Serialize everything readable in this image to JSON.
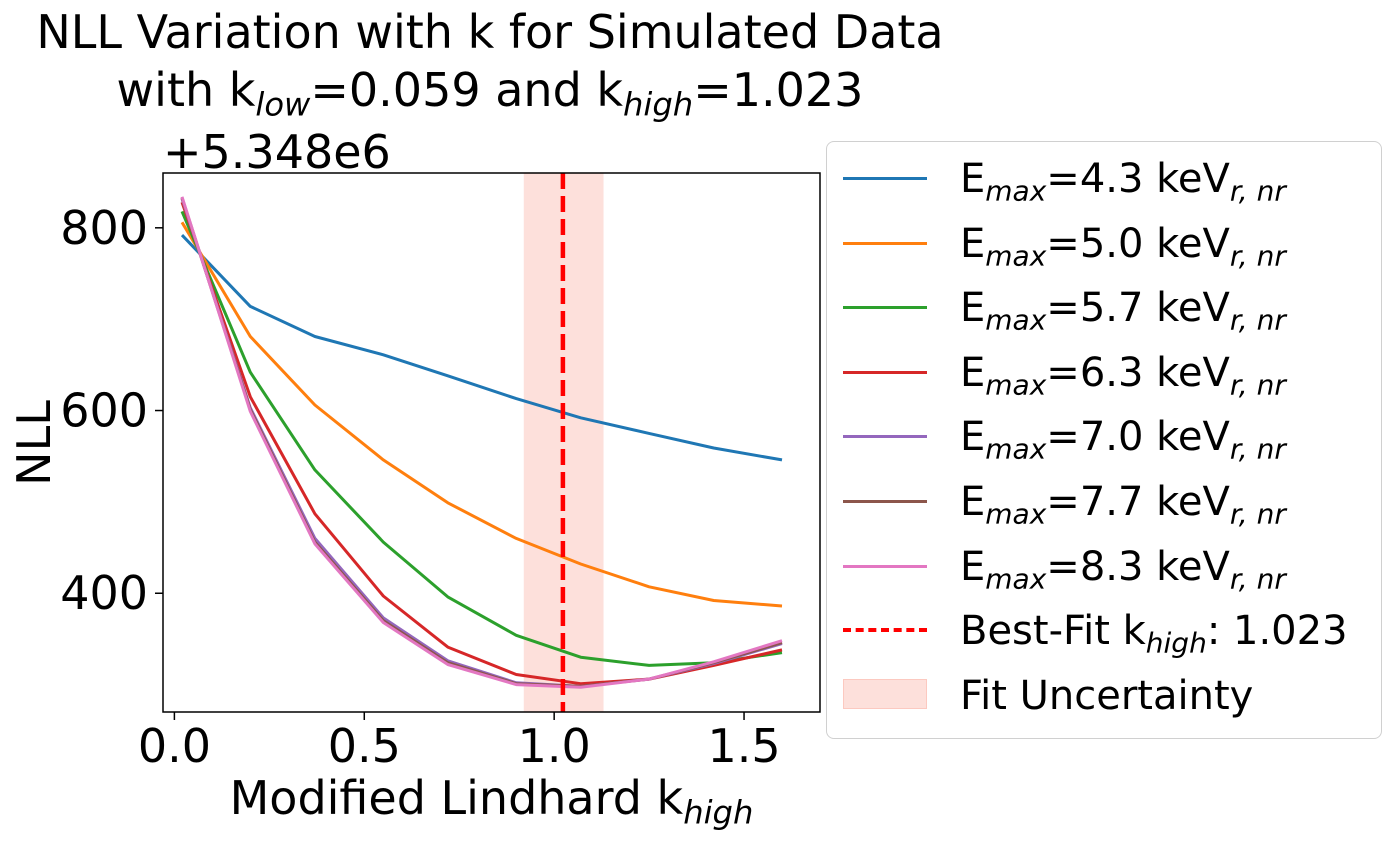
{
  "title_line1": "NLL Variation with k for Simulated Data",
  "title_line2": {
    "pre": "with k",
    "sub1": "low",
    "mid": "=0.059 and k",
    "sub2": "high",
    "post": "=1.023"
  },
  "offset_text": "+5.348e6",
  "chart_data": {
    "type": "line",
    "title": "NLL Variation with k for Simulated Data with k_low=0.059 and k_high=1.023",
    "xlabel": "Modified Lindhard k_high",
    "ylabel": "NLL",
    "y_offset": 5348000,
    "xlim": [
      -0.03,
      1.7
    ],
    "ylim": [
      270,
      860
    ],
    "xticks": [
      0.0,
      0.5,
      1.0,
      1.5
    ],
    "xtick_labels": [
      "0.0",
      "0.5",
      "1.0",
      "1.5"
    ],
    "yticks": [
      400,
      600,
      800
    ],
    "ytick_labels": [
      "400",
      "600",
      "800"
    ],
    "x": [
      0.02,
      0.2,
      0.37,
      0.55,
      0.72,
      0.9,
      1.07,
      1.25,
      1.42,
      1.6
    ],
    "series": [
      {
        "name": "E_max=4.3 keV_r,nr",
        "color": "#1f77b4",
        "values": [
          792,
          714,
          681,
          661,
          638,
          613,
          592,
          575,
          559,
          546
        ]
      },
      {
        "name": "E_max=5.0 keV_r,nr",
        "color": "#ff7f0e",
        "values": [
          806,
          681,
          606,
          546,
          499,
          460,
          432,
          407,
          392,
          386
        ]
      },
      {
        "name": "E_max=5.7 keV_r,nr",
        "color": "#2ca02c",
        "values": [
          818,
          642,
          535,
          456,
          396,
          354,
          330,
          321,
          324,
          335
        ]
      },
      {
        "name": "E_max=6.3 keV_r,nr",
        "color": "#d62728",
        "values": [
          828,
          615,
          487,
          397,
          341,
          311,
          301,
          306,
          321,
          338
        ]
      },
      {
        "name": "E_max=7.0 keV_r,nr",
        "color": "#9467bd",
        "values": [
          832,
          603,
          460,
          373,
          326,
          302,
          298,
          306,
          323,
          345
        ]
      },
      {
        "name": "E_max=7.7 keV_r,nr",
        "color": "#8c564b",
        "values": [
          833,
          601,
          456,
          370,
          324,
          301,
          298,
          306,
          324,
          346
        ]
      },
      {
        "name": "E_max=8.3 keV_r,nr",
        "color": "#e377c2",
        "values": [
          834,
          599,
          454,
          368,
          322,
          300,
          297,
          306,
          325,
          348
        ]
      }
    ],
    "best_fit": {
      "name": "Best-Fit k_high: 1.023",
      "x": 1.023,
      "color": "#ff0000"
    },
    "uncertainty": {
      "name": "Fit Uncertainty",
      "x_range": [
        0.92,
        1.13
      ],
      "color": "#fde0db"
    },
    "legend_position": "outside right"
  },
  "legend": [
    {
      "pre": "E",
      "sub1": "max",
      "mid": "=4.3 keV",
      "sub2": "r, nr",
      "post": "",
      "color": "#1f77b4",
      "style": "solid"
    },
    {
      "pre": "E",
      "sub1": "max",
      "mid": "=5.0 keV",
      "sub2": "r, nr",
      "post": "",
      "color": "#ff7f0e",
      "style": "solid"
    },
    {
      "pre": "E",
      "sub1": "max",
      "mid": "=5.7 keV",
      "sub2": "r, nr",
      "post": "",
      "color": "#2ca02c",
      "style": "solid"
    },
    {
      "pre": "E",
      "sub1": "max",
      "mid": "=6.3 keV",
      "sub2": "r, nr",
      "post": "",
      "color": "#d62728",
      "style": "solid"
    },
    {
      "pre": "E",
      "sub1": "max",
      "mid": "=7.0 keV",
      "sub2": "r, nr",
      "post": "",
      "color": "#9467bd",
      "style": "solid"
    },
    {
      "pre": "E",
      "sub1": "max",
      "mid": "=7.7 keV",
      "sub2": "r, nr",
      "post": "",
      "color": "#8c564b",
      "style": "solid"
    },
    {
      "pre": "E",
      "sub1": "max",
      "mid": "=8.3 keV",
      "sub2": "r, nr",
      "post": "",
      "color": "#e377c2",
      "style": "solid"
    },
    {
      "pre": "Best-Fit k",
      "sub1": "high",
      "mid": ": 1.023",
      "sub2": "",
      "post": "",
      "color": "#ff0000",
      "style": "dashed"
    },
    {
      "pre": "Fit Uncertainty",
      "sub1": "",
      "mid": "",
      "sub2": "",
      "post": "",
      "color": "#fde0db",
      "style": "patch"
    }
  ],
  "axis_labels": {
    "y": "NLL",
    "x_pre": "Modified Lindhard k",
    "x_sub": "high"
  }
}
